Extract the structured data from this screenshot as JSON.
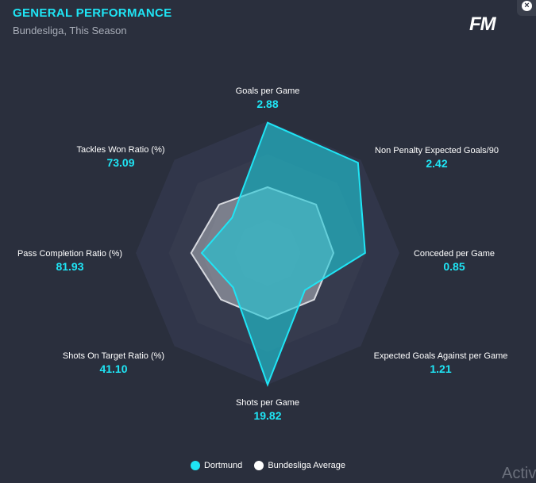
{
  "panel": {
    "title": "GENERAL PERFORMANCE",
    "subtitle": "Bundesliga, This Season",
    "logo": "FM",
    "close_icon": "close-icon",
    "close_glyph": "×",
    "watermark": "Activ"
  },
  "chart_data": {
    "type": "radar",
    "axes": [
      {
        "label": "Goals per Game",
        "value": "2.88"
      },
      {
        "label": "Non Penalty Expected Goals/90",
        "value": "2.42"
      },
      {
        "label": "Conceded per Game",
        "value": "0.85"
      },
      {
        "label": "Expected Goals Against per Game",
        "value": "1.21"
      },
      {
        "label": "Shots per Game",
        "value": "19.82"
      },
      {
        "label": "Shots On Target Ratio (%)",
        "value": "41.10"
      },
      {
        "label": "Pass Completion Ratio (%)",
        "value": "81.93"
      },
      {
        "label": "Tackles Won Ratio (%)",
        "value": "73.09"
      }
    ],
    "series": [
      {
        "name": "Dortmund",
        "color": "#1fe5f5",
        "normalized": [
          0.99,
          0.97,
          0.74,
          0.4,
          1.0,
          0.37,
          0.5,
          0.38
        ]
      },
      {
        "name": "Bundesliga Average",
        "color": "#ffffff",
        "normalized": [
          0.5,
          0.52,
          0.5,
          0.5,
          0.5,
          0.5,
          0.58,
          0.52
        ]
      }
    ],
    "rings": 4,
    "legend": "bottom"
  }
}
